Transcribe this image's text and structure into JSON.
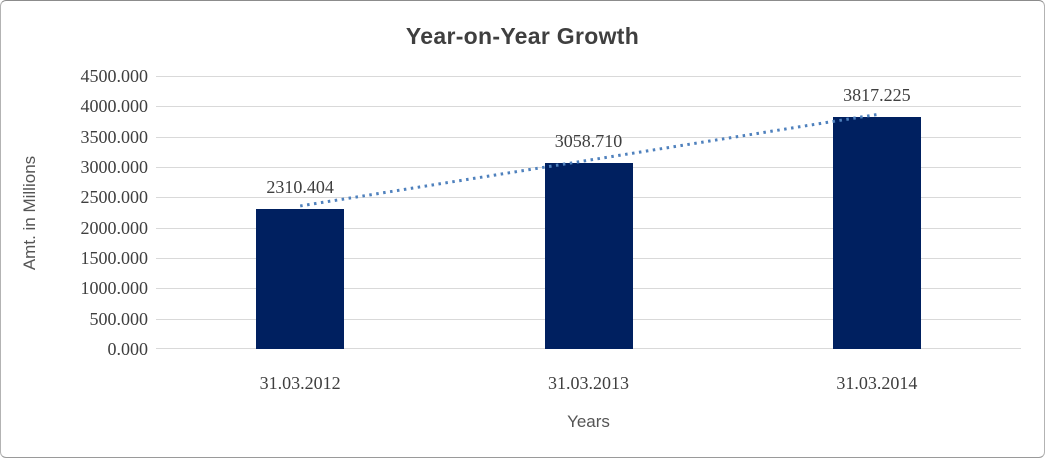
{
  "chart_data": {
    "type": "bar",
    "title": "Year-on-Year Growth",
    "xlabel": "Years",
    "ylabel": "Amt. in Millions",
    "categories": [
      "31.03.2012",
      "31.03.2013",
      "31.03.2014"
    ],
    "values": [
      2310.404,
      3058.71,
      3817.225
    ],
    "value_labels": [
      "2310.404",
      "3058.710",
      "3817.225"
    ],
    "ylim": [
      0,
      4500
    ],
    "ytick_step": 500,
    "ytick_labels": [
      "0.000",
      "500.000",
      "1000.000",
      "1500.000",
      "2000.000",
      "2500.000",
      "3000.000",
      "3500.000",
      "4000.000",
      "4500.000"
    ],
    "grid": true,
    "legend": "none",
    "bar_color": "#002060",
    "gridline_color": "#d9d9d9",
    "text_color": "#3f3f3f",
    "axis_title_color": "#555555",
    "trendline": {
      "type": "linear",
      "style": "dotted",
      "color": "#4F81BD"
    }
  }
}
